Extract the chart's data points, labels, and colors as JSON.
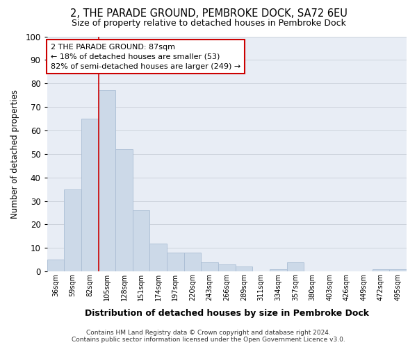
{
  "title": "2, THE PARADE GROUND, PEMBROKE DOCK, SA72 6EU",
  "subtitle": "Size of property relative to detached houses in Pembroke Dock",
  "xlabel": "Distribution of detached houses by size in Pembroke Dock",
  "ylabel": "Number of detached properties",
  "categories": [
    "36sqm",
    "59sqm",
    "82sqm",
    "105sqm",
    "128sqm",
    "151sqm",
    "174sqm",
    "197sqm",
    "220sqm",
    "243sqm",
    "266sqm",
    "289sqm",
    "311sqm",
    "334sqm",
    "357sqm",
    "380sqm",
    "403sqm",
    "426sqm",
    "449sqm",
    "472sqm",
    "495sqm"
  ],
  "values": [
    5,
    35,
    65,
    77,
    52,
    26,
    12,
    8,
    8,
    4,
    3,
    2,
    0,
    1,
    4,
    0,
    0,
    0,
    0,
    1,
    1
  ],
  "bar_color": "#ccd9e8",
  "bar_edge_color": "#aabdd4",
  "grid_color": "#c8cfd8",
  "background_color": "#e8edf5",
  "vline_x_index": 2,
  "vline_color": "#cc0000",
  "annotation_text": "2 THE PARADE GROUND: 87sqm\n← 18% of detached houses are smaller (53)\n82% of semi-detached houses are larger (249) →",
  "annotation_box_color": "#ffffff",
  "annotation_box_edge": "#cc0000",
  "footer": "Contains HM Land Registry data © Crown copyright and database right 2024.\nContains public sector information licensed under the Open Government Licence v3.0.",
  "ylim": [
    0,
    100
  ],
  "yticks": [
    0,
    10,
    20,
    30,
    40,
    50,
    60,
    70,
    80,
    90,
    100
  ]
}
